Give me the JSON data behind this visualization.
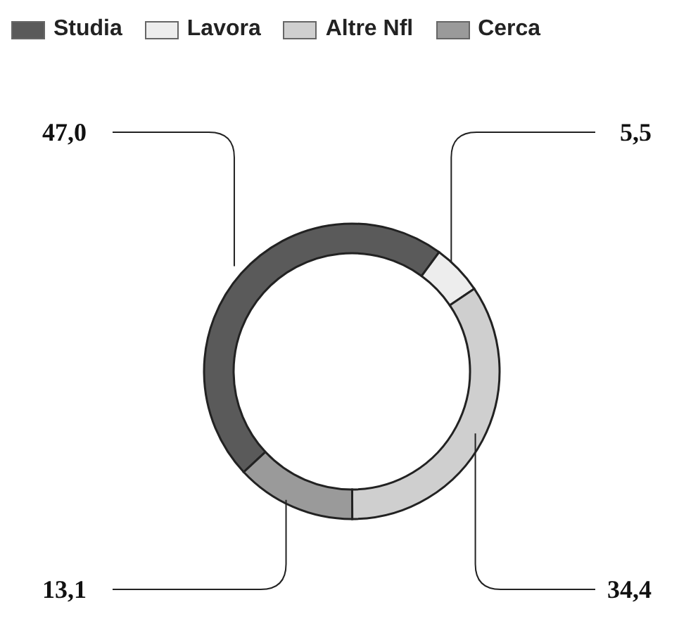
{
  "chart_data": {
    "type": "donut",
    "categories": [
      "Studia",
      "Lavora",
      "Altre Nfl",
      "Cerca"
    ],
    "values": [
      47.0,
      5.5,
      34.4,
      13.1
    ],
    "colors": [
      "#5a5a5a",
      "#ededed",
      "#cfcfcf",
      "#9a9a9a"
    ],
    "value_labels": [
      "47,0",
      "5,5",
      "34,4",
      "13,1"
    ],
    "legend": "top left"
  }
}
